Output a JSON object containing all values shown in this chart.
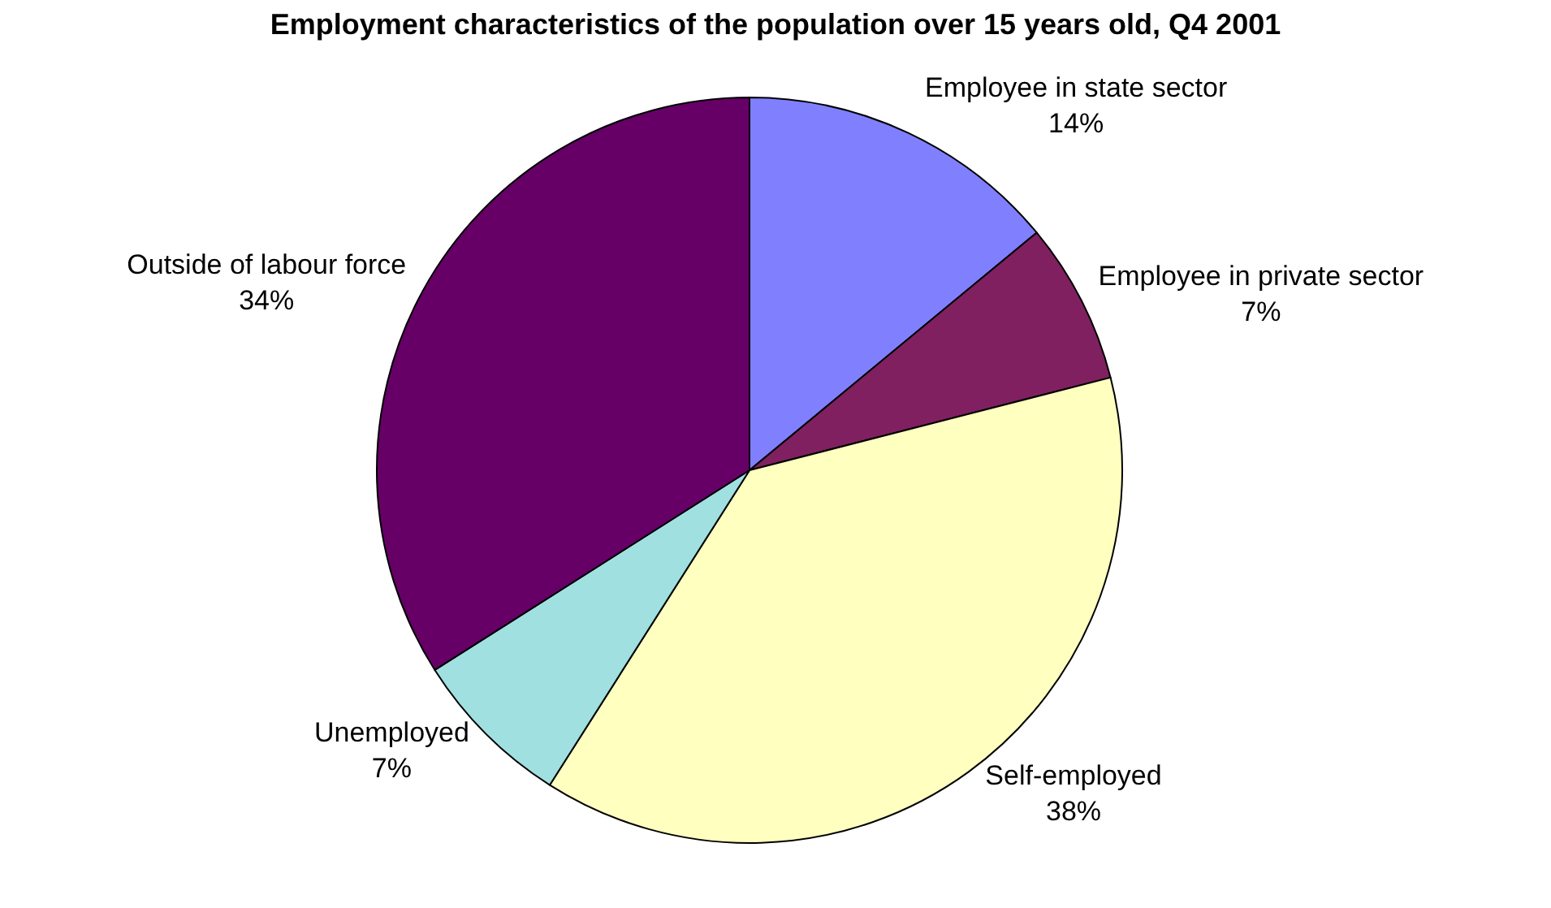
{
  "chart_data": {
    "type": "pie",
    "title": "Employment characteristics of the population over 15 years old, Q4 2001",
    "categories": [
      "Employee in state sector",
      "Employee in private sector",
      "Self-employed",
      "Unemployed",
      "Outside of labour force"
    ],
    "values": [
      14,
      7,
      38,
      7,
      34
    ],
    "value_labels": [
      "14%",
      "7%",
      "38%",
      "7%",
      "34%"
    ],
    "colors": [
      "#8080ff",
      "#802060",
      "#ffffc0",
      "#a0e0e0",
      "#660066"
    ],
    "legend": false
  }
}
